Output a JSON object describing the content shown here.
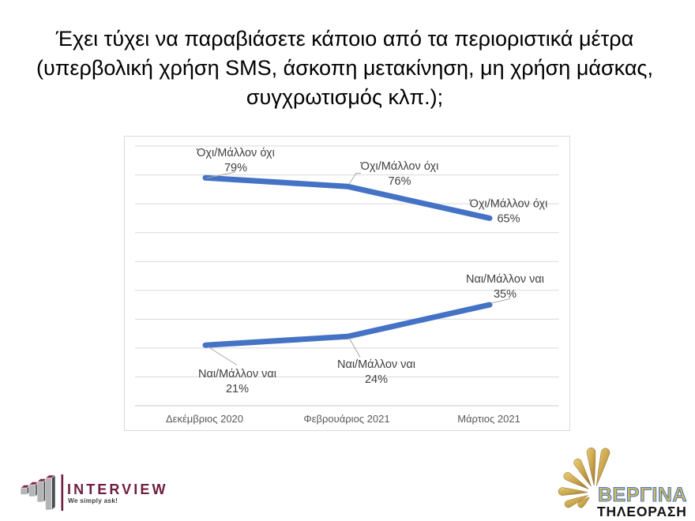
{
  "title": {
    "lines": [
      "Έχει τύχει να παραβιάσετε κάποιο από τα περιοριστικά μέτρα",
      "(υπερβολική χρήση SMS, άσκοπη μετακίνηση, μη χρήση μάσκας,",
      "συγχρωτισμός κλπ.);"
    ],
    "full_text": "Έχει τύχει να παραβιάσετε κάποιο από τα περιοριστικά μέτρα (υπερβολική χρήση SMS, άσκοπη μετακίνηση, μη χρήση μάσκας, συγχρωτισμός κλπ.);"
  },
  "chart_data": {
    "type": "line",
    "categories": [
      "Δεκέμβριος 2020",
      "Φεβρουάριος 2021",
      "Μάρτιος 2021"
    ],
    "series": [
      {
        "name": "Όχι/Μάλλον όχι",
        "values": [
          79,
          76,
          65
        ]
      },
      {
        "name": "Ναι/Μάλλον ναι",
        "values": [
          21,
          24,
          35
        ]
      }
    ],
    "data_labels": [
      [
        "Όχι/Μάλλον όχι 79%",
        "Όχι/Μάλλον όχι 76%",
        "Όχι/Μάλλον όχι 65%"
      ],
      [
        "Ναι/Μάλλον ναι 21%",
        "Ναι/Μάλλον ναι 24%",
        "Ναι/Μάλλον ναι 35%"
      ]
    ],
    "title": "",
    "xlabel": "",
    "ylabel": "",
    "ylim": [
      0,
      90
    ],
    "grid": true,
    "legend": false,
    "line_color": "#4472C4",
    "gridline_color": "#D9D9D9",
    "axis_line_color": "#C9C9C9",
    "data_label_color": "#404040",
    "category_label_color": "#595959",
    "leader_line_color": "#A6A6A6"
  },
  "footer": {
    "interview_logo": {
      "brand": "INTERVIEW",
      "tagline": "We simply ask!",
      "brand_color": "#6E1E41",
      "tagline_color": "#3B3B3D",
      "chart_icon": "3d-bar-chart-icon"
    },
    "vergina_logo": {
      "brand": "ΒΕΡΓΙΝΑ",
      "subtitle": "ΤΗΛΕΟΡΑΣΗ",
      "sun_color": "#C9A54E",
      "brand_fill": "#D8B959",
      "brand_outline": "#4A7BC2",
      "subtitle_color": "#141414",
      "sun_icon": "vergina-sun-icon"
    }
  }
}
